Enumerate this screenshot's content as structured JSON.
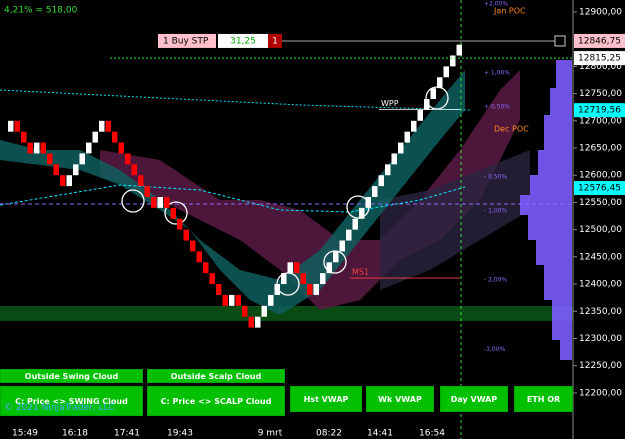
{
  "chart_data": {
    "type": "renko",
    "header": "4,21% = 518,00",
    "brick_size": 20,
    "open": 12680,
    "values": [
      12700,
      12680,
      12660,
      12640,
      12660,
      12640,
      12620,
      12600,
      12580,
      12600,
      12620,
      12640,
      12660,
      12680,
      12700,
      12680,
      12660,
      12640,
      12620,
      12600,
      12580,
      12560,
      12540,
      12560,
      12540,
      12520,
      12500,
      12480,
      12460,
      12440,
      12420,
      12400,
      12380,
      12360,
      12380,
      12360,
      12340,
      12320,
      12340,
      12360,
      12380,
      12400,
      12420,
      12440,
      12420,
      12400,
      12380,
      12400,
      12420,
      12440,
      12460,
      12480,
      12500,
      12520,
      12540,
      12560,
      12580,
      12600,
      12620,
      12640,
      12660,
      12680,
      12700,
      12720,
      12740,
      12760,
      12780,
      12800,
      12820,
      12840
    ],
    "up_color": "#ffffff",
    "down_color": "#ff0000",
    "ylim": [
      12141,
      12922
    ],
    "yticks": [
      {
        "value": 12900,
        "label": "12900,00"
      },
      {
        "value": 12800,
        "label": "12800,00"
      },
      {
        "value": 12750,
        "label": "12750,00"
      },
      {
        "value": 12700,
        "label": "12700,00"
      },
      {
        "value": 12650,
        "label": "12650,00"
      },
      {
        "value": 12600,
        "label": "12600,00"
      },
      {
        "value": 12550,
        "label": "12550,00"
      },
      {
        "value": 12500,
        "label": "12500,00"
      },
      {
        "value": 12450,
        "label": "12450,00"
      },
      {
        "value": 12400,
        "label": "12400,00"
      },
      {
        "value": 12350,
        "label": "12350,00"
      },
      {
        "value": 12300,
        "label": "12300,00"
      },
      {
        "value": 12250,
        "label": "12250,00"
      },
      {
        "value": 12200,
        "label": "12200,00"
      }
    ],
    "price_tags": [
      {
        "value": 12846.75,
        "label": "12846,75",
        "color": "#ffc0cb"
      },
      {
        "value": 12815.25,
        "label": "12815,25",
        "color": "#ffffff"
      },
      {
        "value": 12719.56,
        "label": "12719,56",
        "color": "#00ffff"
      },
      {
        "value": 12576.45,
        "label": "12576,45",
        "color": "#00ffff"
      }
    ],
    "levels": [
      {
        "value": 12915,
        "label": "+2,00%"
      },
      {
        "value": 12788,
        "label": "+ 1,00%"
      },
      {
        "value": 12725,
        "label": "+ 0.50%"
      },
      {
        "value": 12597,
        "label": "- 0.50%"
      },
      {
        "value": 12534,
        "label": "- 1,00%"
      },
      {
        "value": 12407,
        "label": "- 2,00%"
      },
      {
        "value": 12280,
        "label": "-3,00%"
      }
    ],
    "annotations": [
      {
        "value": 12902,
        "label": "Jan POC"
      },
      {
        "value": 12685,
        "label": "Dec POC"
      },
      {
        "value": 12732,
        "label": "WPP"
      },
      {
        "value": 12422,
        "label": "MS1"
      }
    ],
    "x_labels": [
      "15:49",
      "16:18",
      "17:41",
      "19:43",
      "9 mrt",
      "08:22",
      "14:41",
      "16:54"
    ],
    "order": {
      "label": "1 Buy STP",
      "price": "31,25",
      "qty": "1"
    },
    "buttons": {
      "row1": [
        "Outside Swing Cloud",
        "Outside Scalp Cloud"
      ],
      "row2": [
        "C: Price <> SWING Cloud",
        "C: Price <> SCALP Cloud",
        "Hst VWAP",
        "Wk VWAP",
        "Day VWAP",
        "ETH OR"
      ]
    },
    "copyright": "© 2021 NinjaTrader, LLC"
  }
}
